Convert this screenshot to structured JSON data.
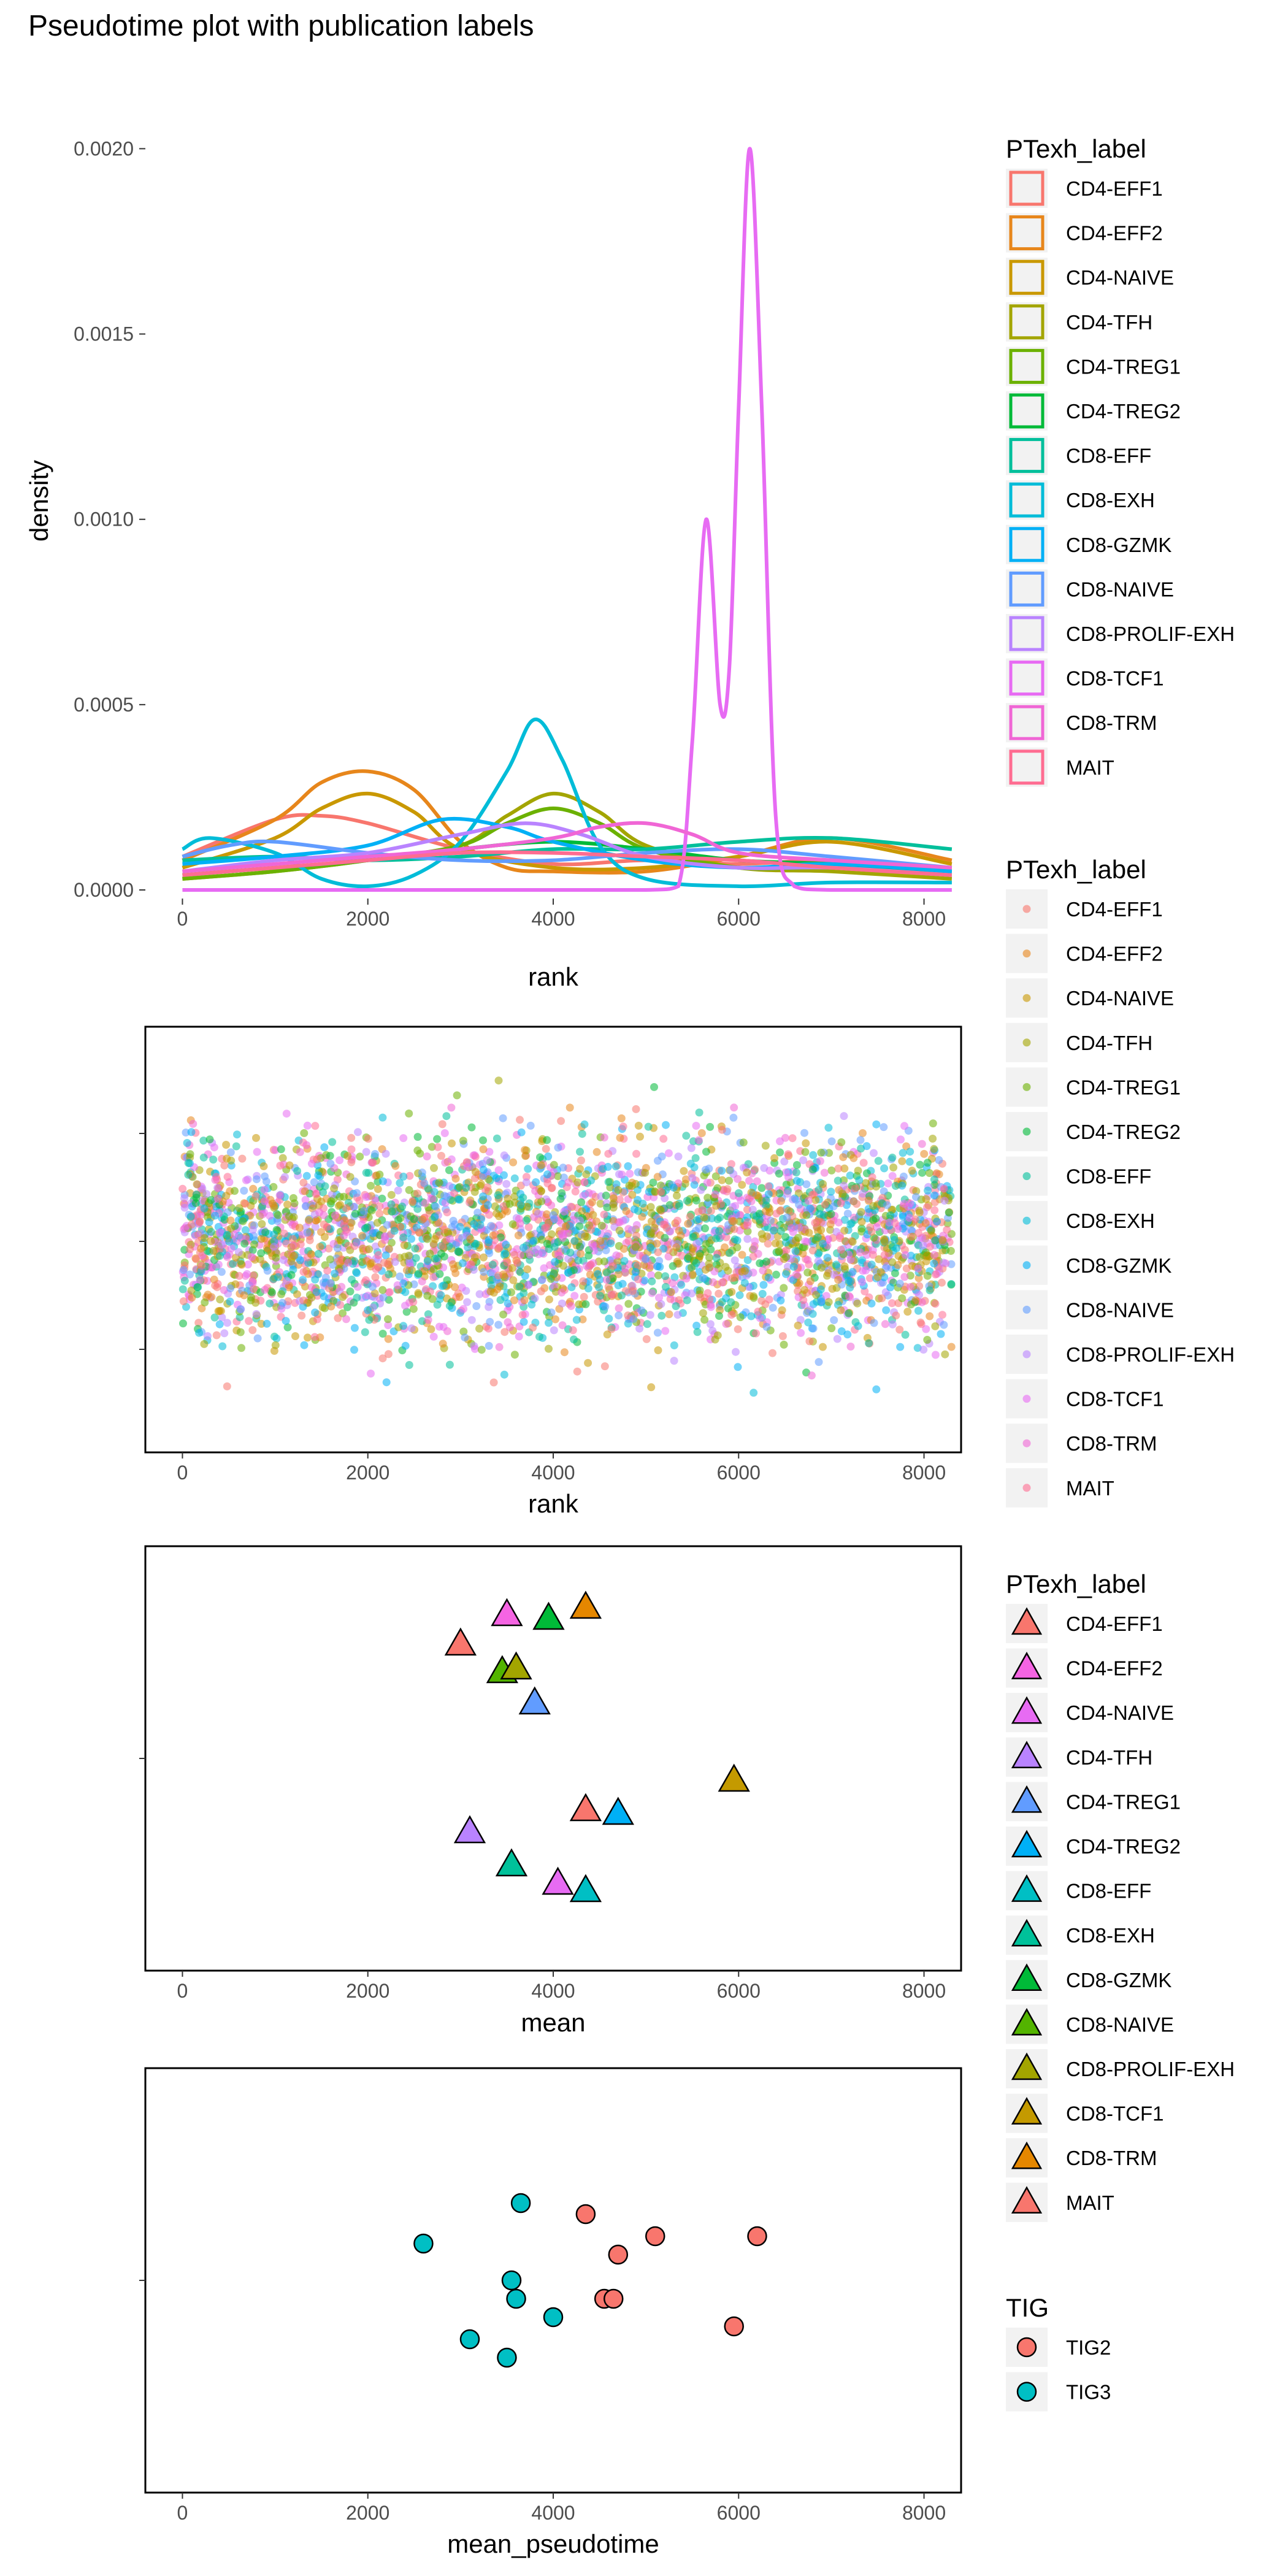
{
  "title": "Pseudotime plot with publication labels",
  "colors": {
    "CD4-EFF1": "#F8766D",
    "CD4-EFF2": "#E58700",
    "CD4-NAIVE": "#C99800",
    "CD4-TFH": "#A3A500",
    "CD4-TREG1": "#6BB100",
    "CD4-TREG2": "#00BA38",
    "CD8-EFF": "#00BF7D",
    "CD8-EXH": "#00C0AF",
    "CD8-GZMK": "#00BCD8",
    "CD8-NAIVE": "#00B0F6",
    "CD8-PROLIF-EXH": "#619CFF",
    "CD8-TCF1": "#B983FF",
    "CD8-TRM": "#E76BF3",
    "MAIT": "#FD61D1",
    "TIG2": "#F8766D",
    "TIG3": "#00BFC4"
  },
  "chart_data": [
    {
      "type": "line",
      "panel": "density",
      "xlabel": "rank",
      "ylabel": "density",
      "xlim": [
        -400,
        8400
      ],
      "ylim": [
        0,
        0.0021
      ],
      "x_ticks": [
        0,
        2000,
        4000,
        6000,
        8000
      ],
      "y_ticks": [
        0.0,
        0.0005,
        0.001,
        0.0015,
        0.002
      ],
      "y_tick_labels": [
        "0.0000",
        "0.0005",
        "0.0010",
        "0.0015",
        "0.0020"
      ],
      "legend": {
        "title": "PTexh_label",
        "entries": [
          "CD4-EFF1",
          "CD4-EFF2",
          "CD4-NAIVE",
          "CD4-TFH",
          "CD4-TREG1",
          "CD4-TREG2",
          "CD8-EFF",
          "CD8-EXH",
          "CD8-GZMK",
          "CD8-NAIVE",
          "CD8-PROLIF-EXH",
          "CD8-TCF1",
          "CD8-TRM",
          "MAIT"
        ],
        "colors": [
          "#F8766D",
          "#E7861B",
          "#C99800",
          "#A3A500",
          "#6BB100",
          "#00BA38",
          "#00BF9B",
          "#00BCD8",
          "#00B0F6",
          "#619CFF",
          "#B983FF",
          "#E76BF3",
          "#F066D5",
          "#FF6C91"
        ]
      },
      "series": [
        {
          "name": "CD4-EFF1",
          "x": [
            0,
            1000,
            1500,
            2000,
            3000,
            4000,
            5000,
            6000,
            7000,
            8300
          ],
          "y": [
            9e-05,
            0.00019,
            0.0002,
            0.00018,
            0.00011,
            7e-05,
            8e-05,
            7e-05,
            8e-05,
            6e-05
          ]
        },
        {
          "name": "CD4-EFF2",
          "x": [
            0,
            1000,
            1500,
            2000,
            2500,
            3000,
            3500,
            4000,
            5000,
            6000,
            7000,
            8300
          ],
          "y": [
            8e-05,
            0.00019,
            0.00029,
            0.00032,
            0.00027,
            0.00013,
            6e-05,
            5e-05,
            5e-05,
            9e-05,
            0.00014,
            8e-05
          ]
        },
        {
          "name": "CD4-NAIVE",
          "x": [
            0,
            1000,
            1500,
            2000,
            2500,
            3000,
            4000,
            5000,
            6000,
            7000,
            8300
          ],
          "y": [
            6e-05,
            0.00014,
            0.00022,
            0.00026,
            0.00021,
            0.00011,
            6e-05,
            6e-05,
            9e-05,
            0.00013,
            7e-05
          ]
        },
        {
          "name": "CD4-TFH",
          "x": [
            0,
            1000,
            2000,
            3000,
            3500,
            4000,
            4500,
            5000,
            6000,
            7000,
            8300
          ],
          "y": [
            3e-05,
            5e-05,
            8e-05,
            0.00012,
            0.0002,
            0.00026,
            0.00021,
            0.00012,
            6e-05,
            5e-05,
            3e-05
          ]
        },
        {
          "name": "CD4-TREG1",
          "x": [
            0,
            1000,
            2000,
            3000,
            3500,
            4000,
            4500,
            5000,
            6000,
            7000,
            8300
          ],
          "y": [
            3e-05,
            5e-05,
            8e-05,
            0.00012,
            0.00018,
            0.00022,
            0.00018,
            0.00011,
            6e-05,
            6e-05,
            4e-05
          ]
        },
        {
          "name": "CD4-TREG2",
          "x": [
            0,
            1000,
            2000,
            3000,
            4000,
            5000,
            6000,
            7000,
            8300
          ],
          "y": [
            4e-05,
            6e-05,
            8e-05,
            0.00011,
            0.00013,
            0.00011,
            8e-05,
            7e-05,
            5e-05
          ]
        },
        {
          "name": "CD8-EFF",
          "x": [
            0,
            1000,
            2000,
            3000,
            4000,
            5000,
            6000,
            7000,
            8300
          ],
          "y": [
            8e-05,
            9e-05,
            8e-05,
            9e-05,
            0.00011,
            0.00011,
            0.00013,
            0.00014,
            0.00011
          ]
        },
        {
          "name": "CD8-EXH",
          "x": [
            0,
            300,
            1000,
            1500,
            2000,
            2500,
            3000,
            3500,
            3800,
            4100,
            4500,
            5000,
            6000,
            7000,
            8300
          ],
          "y": [
            0.00011,
            0.00014,
            0.0001,
            3e-05,
            1e-05,
            4e-05,
            0.00013,
            0.00032,
            0.00046,
            0.00035,
            0.00012,
            3e-05,
            1e-05,
            2e-05,
            2e-05
          ]
        },
        {
          "name": "CD8-GZMK",
          "x": [
            0,
            1000,
            2000,
            2800,
            3500,
            4000,
            5000,
            6000,
            7000,
            8300
          ],
          "y": [
            7e-05,
            9e-05,
            0.00012,
            0.00019,
            0.00017,
            0.00013,
            8e-05,
            6e-05,
            7e-05,
            5e-05
          ]
        },
        {
          "name": "CD8-NAIVE",
          "x": [
            0,
            500,
            1000,
            2000,
            3000,
            4000,
            5000,
            6000,
            7000,
            8300
          ],
          "y": [
            9e-05,
            0.00012,
            0.00013,
            0.0001,
            8e-05,
            8e-05,
            0.0001,
            0.00011,
            9e-05,
            6e-05
          ]
        },
        {
          "name": "CD8-PROLIF-EXH",
          "x": [
            0,
            1000,
            2000,
            3000,
            3700,
            4300,
            5000,
            6000,
            7000,
            8300
          ],
          "y": [
            5e-05,
            8e-05,
            0.0001,
            0.00015,
            0.00018,
            0.00015,
            9e-05,
            6e-05,
            6e-05,
            4e-05
          ]
        },
        {
          "name": "CD8-TCF1",
          "x": [
            0,
            1000,
            2000,
            3000,
            4000,
            5000,
            5350,
            5500,
            5650,
            5800,
            5900,
            6000,
            6120,
            6250,
            6400,
            6600,
            7000,
            8300
          ],
          "y": [
            0,
            0,
            0,
            0,
            0,
            0,
            1e-05,
            0.0004,
            0.001,
            0.0005,
            0.0006,
            0.0013,
            0.002,
            0.0013,
            0.0002,
            1e-05,
            0,
            0
          ]
        },
        {
          "name": "CD8-TRM",
          "x": [
            0,
            1000,
            2000,
            3000,
            4000,
            4500,
            5000,
            5500,
            6000,
            7000,
            8300
          ],
          "y": [
            5e-05,
            7e-05,
            9e-05,
            0.00011,
            0.00014,
            0.00017,
            0.00018,
            0.00015,
            0.0001,
            8e-05,
            6e-05
          ]
        },
        {
          "name": "MAIT",
          "x": [
            0,
            1000,
            2000,
            3000,
            4000,
            5000,
            6000,
            7000,
            8300
          ],
          "y": [
            4e-05,
            6e-05,
            8e-05,
            0.0001,
            0.0001,
            9e-05,
            8e-05,
            6e-05,
            4e-05
          ]
        }
      ]
    },
    {
      "type": "scatter",
      "panel": "jitter",
      "xlabel": "rank",
      "xlim": [
        -400,
        8400
      ],
      "x_ticks": [
        0,
        2000,
        4000,
        6000,
        8000
      ],
      "description_points": "about 8300 jittered points, one per cell, colored by PTexh_label, x = rank 0 to 8300",
      "x_range": [
        0,
        8300
      ],
      "legend": {
        "title": "PTexh_label",
        "entries": [
          "CD4-EFF1",
          "CD4-EFF2",
          "CD4-NAIVE",
          "CD4-TFH",
          "CD4-TREG1",
          "CD4-TREG2",
          "CD8-EFF",
          "CD8-EXH",
          "CD8-GZMK",
          "CD8-NAIVE",
          "CD8-PROLIF-EXH",
          "CD8-TCF1",
          "CD8-TRM",
          "MAIT"
        ],
        "colors": [
          "#F8766D",
          "#E7861B",
          "#C99800",
          "#A3A500",
          "#6BB100",
          "#00BA38",
          "#00BF9B",
          "#00BCD8",
          "#00B0F6",
          "#619CFF",
          "#B983FF",
          "#E76BF3",
          "#F066D5",
          "#FF6C91"
        ]
      }
    },
    {
      "type": "scatter",
      "panel": "mean",
      "xlabel": "mean",
      "xlim": [
        -400,
        8400
      ],
      "x_ticks": [
        0,
        2000,
        4000,
        6000,
        8000
      ],
      "marker": "triangle",
      "legend": {
        "title": "PTexh_label",
        "entries": [
          "CD4-EFF1",
          "CD4-EFF2",
          "CD4-NAIVE",
          "CD4-TFH",
          "CD4-TREG1",
          "CD4-TREG2",
          "CD8-EFF",
          "CD8-EXH",
          "CD8-GZMK",
          "CD8-NAIVE",
          "CD8-PROLIF-EXH",
          "CD8-TCF1",
          "CD8-TRM",
          "MAIT"
        ],
        "colors": [
          "#F8766D",
          "#F564E3",
          "#E76BF3",
          "#B983FF",
          "#619CFF",
          "#00B0F6",
          "#00BFC4",
          "#00C19A",
          "#00BA38",
          "#53B400",
          "#A3A500",
          "#C49A00",
          "#E58700",
          "#F8766D"
        ]
      },
      "points": [
        {
          "x": 3000,
          "y": 0.62,
          "color": "#F8766D"
        },
        {
          "x": 3500,
          "y": 0.78,
          "color": "#F564E3"
        },
        {
          "x": 3450,
          "y": 0.47,
          "color": "#53B400"
        },
        {
          "x": 3600,
          "y": 0.49,
          "color": "#A3A500"
        },
        {
          "x": 3950,
          "y": 0.76,
          "color": "#00BA38"
        },
        {
          "x": 4350,
          "y": 0.82,
          "color": "#E58700"
        },
        {
          "x": 3800,
          "y": 0.3,
          "color": "#619CFF"
        },
        {
          "x": 5950,
          "y": -0.12,
          "color": "#C49A00"
        },
        {
          "x": 4350,
          "y": -0.28,
          "color": "#F8766D"
        },
        {
          "x": 4700,
          "y": -0.3,
          "color": "#00B0F6"
        },
        {
          "x": 3100,
          "y": -0.4,
          "color": "#B983FF"
        },
        {
          "x": 3550,
          "y": -0.58,
          "color": "#00C19A"
        },
        {
          "x": 4050,
          "y": -0.68,
          "color": "#E76BF3"
        },
        {
          "x": 4350,
          "y": -0.72,
          "color": "#00BFC4"
        }
      ]
    },
    {
      "type": "scatter",
      "panel": "mean_pseudotime",
      "xlabel": "mean_pseudotime",
      "xlim": [
        -400,
        8400
      ],
      "x_ticks": [
        0,
        2000,
        4000,
        6000,
        8000
      ],
      "marker": "circle",
      "legend": {
        "title": "TIG",
        "entries": [
          "TIG2",
          "TIG3"
        ],
        "colors": [
          "#F8766D",
          "#00BFC4"
        ]
      },
      "series": [
        {
          "name": "TIG2",
          "points": [
            [
              4350,
              0.36
            ],
            [
              5100,
              0.24
            ],
            [
              6200,
              0.24
            ],
            [
              4700,
              0.14
            ],
            [
              4550,
              -0.1
            ],
            [
              4650,
              -0.1
            ],
            [
              5950,
              -0.25
            ]
          ]
        },
        {
          "name": "TIG3",
          "points": [
            [
              3650,
              0.42
            ],
            [
              2600,
              0.2
            ],
            [
              3550,
              0.0
            ],
            [
              3600,
              -0.1
            ],
            [
              4000,
              -0.2
            ],
            [
              3100,
              -0.32
            ],
            [
              3500,
              -0.42
            ]
          ]
        }
      ]
    }
  ]
}
